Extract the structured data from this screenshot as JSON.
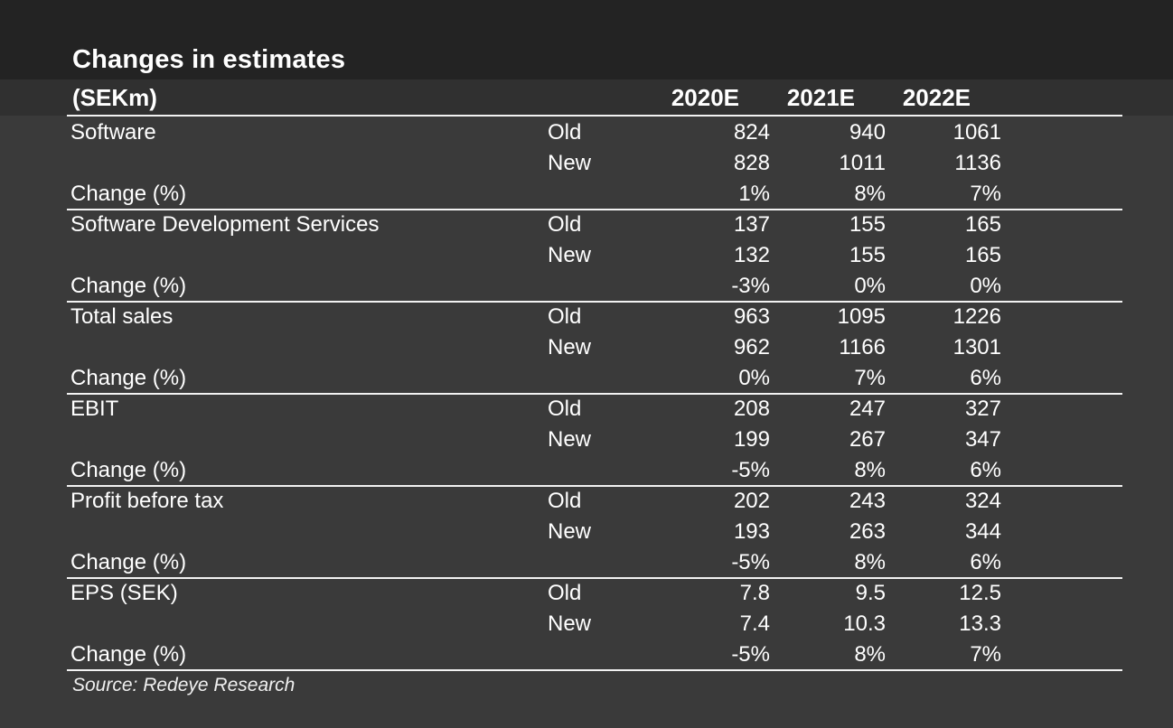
{
  "title": "Changes in estimates",
  "unit_label": "(SEKm)",
  "columns": [
    "2020E",
    "2021E",
    "2022E"
  ],
  "groups": [
    {
      "name": "Software",
      "rows": [
        {
          "type": "Old",
          "values": [
            "824",
            "940",
            "1061"
          ]
        },
        {
          "type": "New",
          "values": [
            "828",
            "1011",
            "1136"
          ]
        },
        {
          "type": "Change (%)",
          "values": [
            "1%",
            "8%",
            "7%"
          ]
        }
      ]
    },
    {
      "name": "Software Development Services",
      "rows": [
        {
          "type": "Old",
          "values": [
            "137",
            "155",
            "165"
          ]
        },
        {
          "type": "New",
          "values": [
            "132",
            "155",
            "165"
          ]
        },
        {
          "type": "Change (%)",
          "values": [
            "-3%",
            "0%",
            "0%"
          ]
        }
      ]
    },
    {
      "name": "Total sales",
      "rows": [
        {
          "type": "Old",
          "values": [
            "963",
            "1095",
            "1226"
          ]
        },
        {
          "type": "New",
          "values": [
            "962",
            "1166",
            "1301"
          ]
        },
        {
          "type": "Change (%)",
          "values": [
            "0%",
            "7%",
            "6%"
          ]
        }
      ]
    },
    {
      "name": "EBIT",
      "rows": [
        {
          "type": "Old",
          "values": [
            "208",
            "247",
            "327"
          ]
        },
        {
          "type": "New",
          "values": [
            "199",
            "267",
            "347"
          ]
        },
        {
          "type": "Change (%)",
          "values": [
            "-5%",
            "8%",
            "6%"
          ]
        }
      ]
    },
    {
      "name": "Profit before tax",
      "rows": [
        {
          "type": "Old",
          "values": [
            "202",
            "243",
            "324"
          ]
        },
        {
          "type": "New",
          "values": [
            "193",
            "263",
            "344"
          ]
        },
        {
          "type": "Change (%)",
          "values": [
            "-5%",
            "8%",
            "6%"
          ]
        }
      ]
    },
    {
      "name": "EPS (SEK)",
      "rows": [
        {
          "type": "Old",
          "values": [
            "7.8",
            "9.5",
            "12.5"
          ]
        },
        {
          "type": "New",
          "values": [
            "7.4",
            "10.3",
            "13.3"
          ]
        },
        {
          "type": "Change (%)",
          "values": [
            "-5%",
            "8%",
            "7%"
          ]
        }
      ]
    }
  ],
  "source": "Source: Redeye Research"
}
